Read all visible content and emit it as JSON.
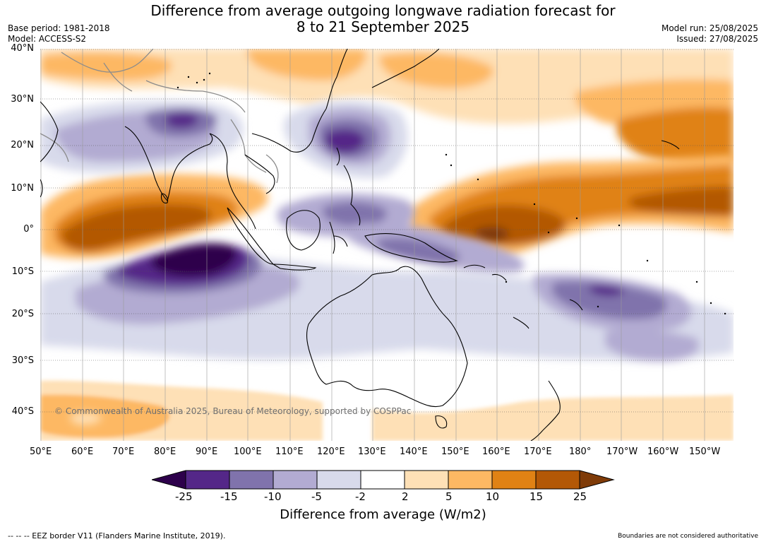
{
  "title": {
    "line1": "Difference from average outgoing longwave radiation forecast for",
    "line2": "8 to 21 September 2025"
  },
  "meta_left": {
    "base_period": "Base period: 1981-2018",
    "model": "Model: ACCESS-S2"
  },
  "meta_right": {
    "model_run": "Model run: 25/08/2025",
    "issued": "Issued: 27/08/2025"
  },
  "map": {
    "lat_labels": [
      "40°N",
      "30°N",
      "20°N",
      "10°N",
      "0°",
      "10°S",
      "20°S",
      "30°S",
      "40°S"
    ],
    "lon_labels": [
      "50°E",
      "60°E",
      "70°E",
      "80°E",
      "90°E",
      "100°E",
      "110°E",
      "120°E",
      "130°E",
      "140°E",
      "150°E",
      "160°E",
      "170°E",
      "180°",
      "170°W",
      "160°W",
      "150°W"
    ],
    "copyright": "© Commonwealth of Australia 2025, Bureau of Meteorology, supported by COSPPac",
    "colors": {
      "ocean": "#ffffff",
      "coast": "#000000",
      "border": "#8c8c8c",
      "grid": "#555555"
    }
  },
  "legend": {
    "tick_labels": [
      "-25",
      "-15",
      "-10",
      "-5",
      "-2",
      "2",
      "5",
      "10",
      "15",
      "25"
    ],
    "colors": [
      "#2d004b",
      "#542788",
      "#8073ac",
      "#b2abd2",
      "#d8daeb",
      "#ffffff",
      "#fee0b6",
      "#fdb863",
      "#e08214",
      "#b35806",
      "#7f3b08"
    ],
    "title": "Difference from average (W/m2)"
  },
  "footer": {
    "eez_note": "--  --  -- EEZ border V11 (Flanders Marine Institute, 2019).",
    "boundaries_note": "Boundaries are not considered authoritative"
  }
}
